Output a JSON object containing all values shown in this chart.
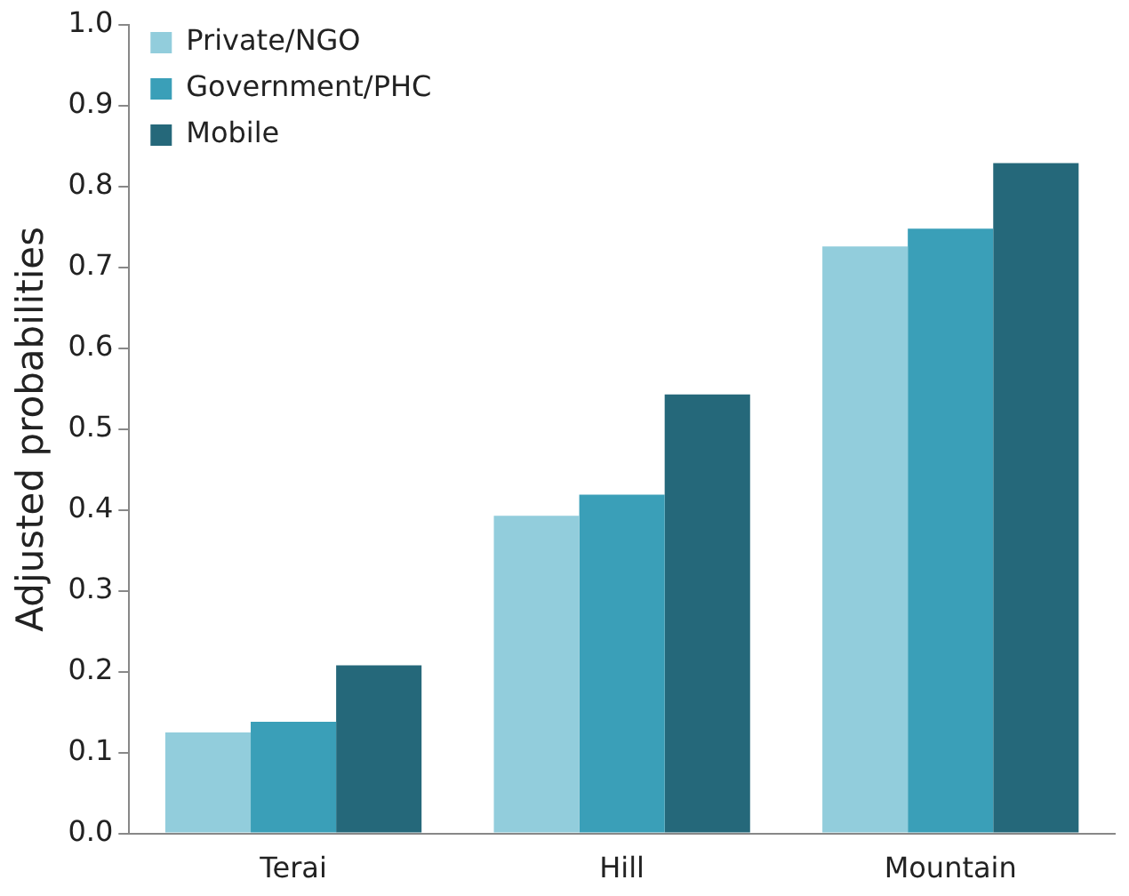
{
  "chart_data": {
    "type": "bar",
    "ylabel": "Adjusted probabilities",
    "categories": [
      "Terai",
      "Hill",
      "Mountain"
    ],
    "series": [
      {
        "name": "Private/NGO",
        "color": "#92cddc",
        "values": [
          0.125,
          0.393,
          0.726
        ]
      },
      {
        "name": "Government/PHC",
        "color": "#3a9fb8",
        "values": [
          0.138,
          0.419,
          0.748
        ]
      },
      {
        "name": "Mobile",
        "color": "#25687a",
        "values": [
          0.208,
          0.543,
          0.829
        ]
      }
    ],
    "ylim": [
      0,
      1
    ],
    "yticks": [
      {
        "value": 0,
        "label": "0.0"
      },
      {
        "value": 0.1,
        "label": "0.1"
      },
      {
        "value": 0.2,
        "label": "0.2"
      },
      {
        "value": 0.3,
        "label": "0.3"
      },
      {
        "value": 0.4,
        "label": "0.4"
      },
      {
        "value": 0.5,
        "label": "0.5"
      },
      {
        "value": 0.6,
        "label": "0.6"
      },
      {
        "value": 0.7,
        "label": "0.7"
      },
      {
        "value": 0.8,
        "label": "0.8"
      },
      {
        "value": 0.9,
        "label": "0.9"
      },
      {
        "value": 1,
        "label": "1.0"
      }
    ],
    "grid": false,
    "legend": "top left"
  }
}
